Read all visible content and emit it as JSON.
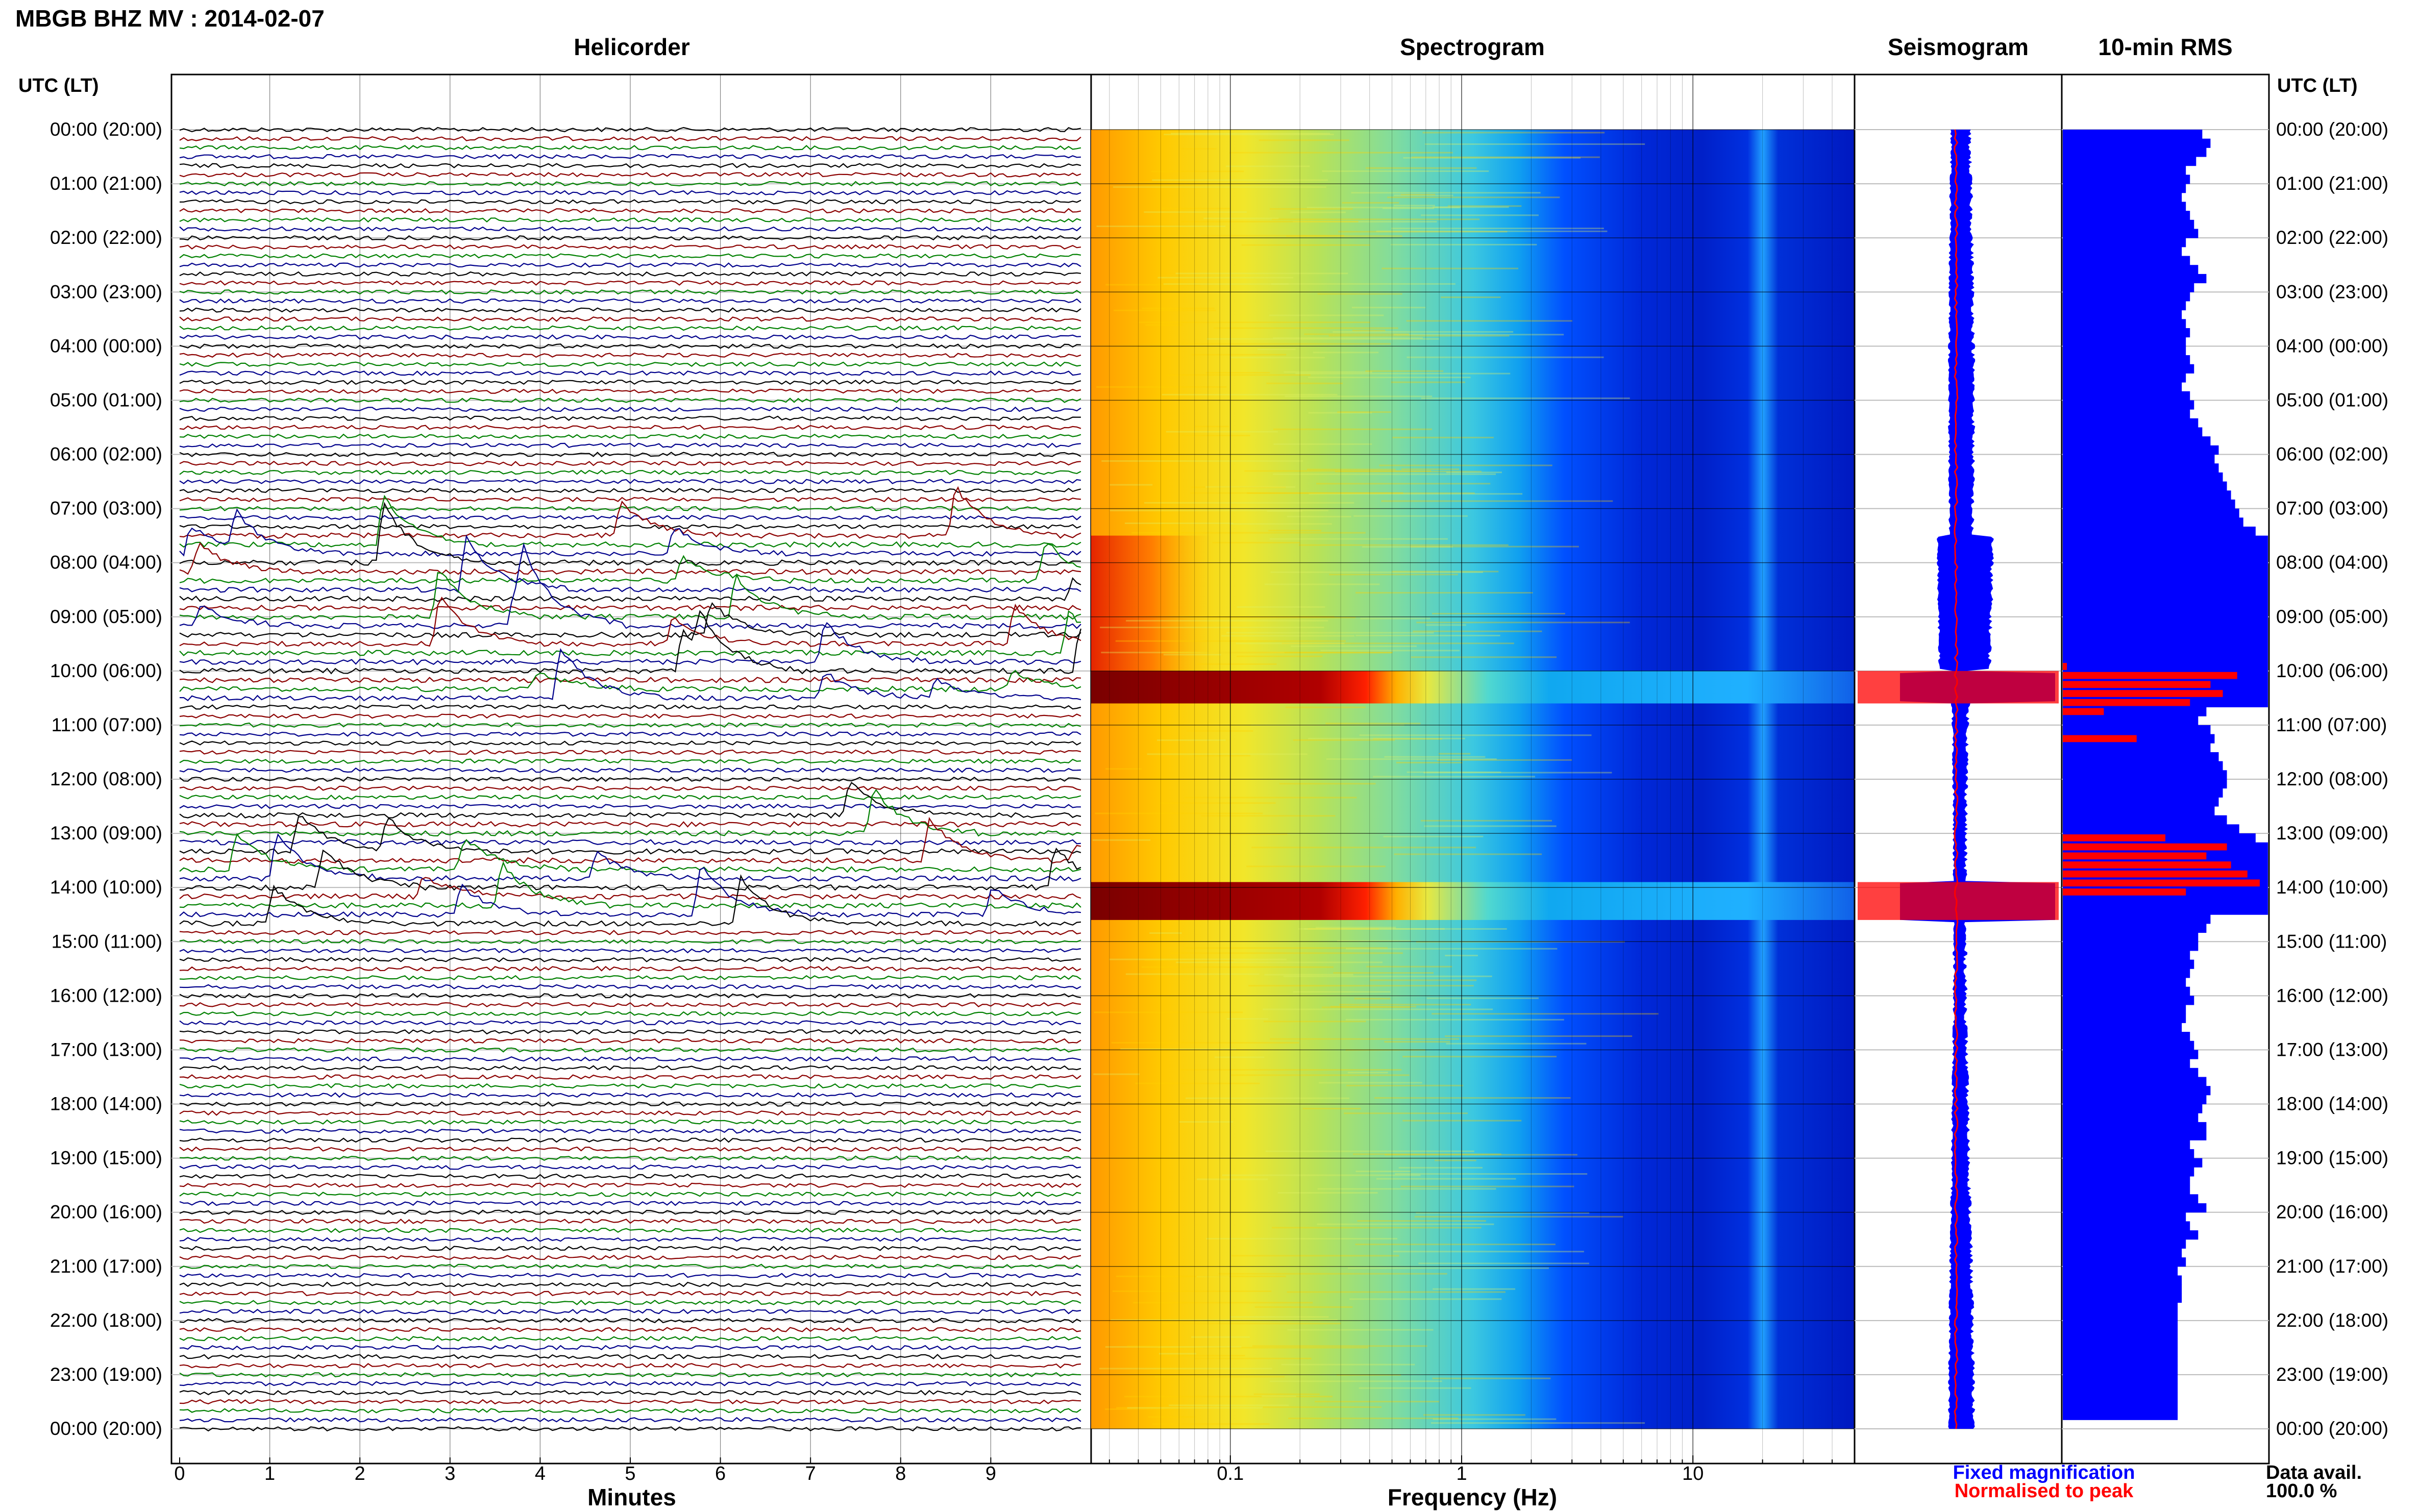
{
  "page": {
    "title": "MBGB BHZ MV : 2014-02-07",
    "utc_label": "UTC (LT)"
  },
  "panels": {
    "helicorder": "Helicorder",
    "spectrogram": "Spectrogram",
    "seismogram": "Seismogram",
    "rms": "10-min RMS"
  },
  "legend": {
    "fixed": "Fixed magnification",
    "fixed_color": "#0000ff",
    "normalised": "Normalised to peak",
    "normalised_color": "#ff0000",
    "data_avail_label": "Data avail.",
    "data_avail_value": "100.0 %"
  },
  "chart_data": [
    {
      "type": "line",
      "title": "Helicorder",
      "xlabel": "Minutes",
      "xlim": [
        0,
        10
      ],
      "x_ticks": [
        "0",
        "1",
        "2",
        "3",
        "4",
        "5",
        "6",
        "7",
        "8",
        "9"
      ],
      "row_labels": [
        "00:00 (20:00)",
        "01:00 (21:00)",
        "02:00 (22:00)",
        "03:00 (23:00)",
        "04:00 (00:00)",
        "05:00 (01:00)",
        "06:00 (02:00)",
        "07:00 (03:00)",
        "08:00 (04:00)",
        "09:00 (05:00)",
        "10:00 (06:00)",
        "11:00 (07:00)",
        "12:00 (08:00)",
        "13:00 (09:00)",
        "14:00 (10:00)",
        "15:00 (11:00)",
        "16:00 (12:00)",
        "17:00 (13:00)",
        "18:00 (14:00)",
        "19:00 (15:00)",
        "20:00 (16:00)",
        "21:00 (17:00)",
        "22:00 (18:00)",
        "23:00 (19:00)",
        "00:00 (20:00)"
      ],
      "trace_colors": [
        "#000000",
        "#8b0000",
        "#008000",
        "#00008b"
      ],
      "traces_per_hour": 6,
      "active_periods_utc_hours": [
        [
          7.5,
          10.6
        ],
        [
          12.6,
          14.8
        ]
      ]
    },
    {
      "type": "heatmap",
      "title": "Spectrogram",
      "xlabel": "Frequency (Hz)",
      "x_scale": "log",
      "xlim": [
        0.025,
        50
      ],
      "x_ticks": [
        "0.1",
        "1",
        "10"
      ],
      "colormap": "jet",
      "high_energy_bands_utc_hours": [
        [
          10.0,
          10.6
        ],
        [
          13.9,
          14.6
        ]
      ]
    },
    {
      "type": "line",
      "title": "Seismogram",
      "series": [
        {
          "name": "Fixed magnification",
          "color": "#0000ff"
        },
        {
          "name": "Normalised to peak",
          "color": "#ff0000"
        }
      ]
    },
    {
      "type": "bar",
      "title": "10-min RMS",
      "bins_per_hour": 6,
      "blue_series_name": "Fixed magnification",
      "red_series_name": "Normalised to peak",
      "blue_values": [
        0.68,
        0.72,
        0.7,
        0.65,
        0.6,
        0.62,
        0.6,
        0.58,
        0.6,
        0.62,
        0.64,
        0.66,
        0.6,
        0.58,
        0.62,
        0.66,
        0.7,
        0.64,
        0.62,
        0.6,
        0.58,
        0.6,
        0.62,
        0.6,
        0.6,
        0.62,
        0.64,
        0.6,
        0.58,
        0.62,
        0.64,
        0.62,
        0.66,
        0.68,
        0.72,
        0.76,
        0.74,
        0.76,
        0.78,
        0.8,
        0.82,
        0.84,
        0.86,
        0.88,
        0.94,
        1.0,
        1.0,
        1.0,
        1.0,
        1.0,
        1.0,
        1.0,
        1.0,
        1.0,
        1.0,
        1.0,
        1.0,
        1.0,
        1.0,
        1.0,
        1.0,
        1.0,
        1.0,
        1.0,
        0.7,
        0.66,
        0.72,
        0.74,
        0.72,
        0.76,
        0.78,
        0.8,
        0.8,
        0.78,
        0.76,
        0.74,
        0.8,
        0.86,
        0.94,
        1.0,
        1.0,
        1.0,
        1.0,
        1.0,
        1.0,
        1.0,
        1.0,
        0.72,
        0.7,
        0.66,
        0.66,
        0.62,
        0.64,
        0.62,
        0.6,
        0.62,
        0.64,
        0.6,
        0.6,
        0.58,
        0.62,
        0.64,
        0.66,
        0.62,
        0.66,
        0.7,
        0.72,
        0.7,
        0.68,
        0.66,
        0.7,
        0.7,
        0.62,
        0.64,
        0.68,
        0.64,
        0.62,
        0.62,
        0.66,
        0.7,
        0.6,
        0.62,
        0.66,
        0.6,
        0.58,
        0.6,
        0.56,
        0.58,
        0.58,
        0.58,
        0.56,
        0.56,
        0.56,
        0.56,
        0.56,
        0.56,
        0.56,
        0.56,
        0.56,
        0.56,
        0.56,
        0.56,
        0.56
      ],
      "red_values": [
        0,
        0,
        0,
        0,
        0,
        0,
        0,
        0,
        0,
        0,
        0,
        0,
        0,
        0,
        0,
        0,
        0,
        0,
        0,
        0,
        0,
        0,
        0,
        0,
        0,
        0,
        0,
        0,
        0,
        0,
        0,
        0,
        0,
        0,
        0,
        0,
        0,
        0,
        0,
        0,
        0,
        0,
        0,
        0,
        0,
        0,
        0,
        0,
        0,
        0,
        0,
        0,
        0,
        0,
        0,
        0,
        0,
        0,
        0,
        0.02,
        0.85,
        0.72,
        0.78,
        0.62,
        0.2,
        0,
        0,
        0.36,
        0,
        0,
        0,
        0,
        0,
        0,
        0,
        0,
        0,
        0,
        0.5,
        0.8,
        0.7,
        0.82,
        0.9,
        0.96,
        0.6,
        0,
        0,
        0,
        0,
        0,
        0,
        0,
        0,
        0,
        0,
        0,
        0,
        0,
        0,
        0,
        0,
        0,
        0,
        0,
        0,
        0,
        0,
        0,
        0,
        0,
        0,
        0,
        0,
        0,
        0,
        0,
        0,
        0,
        0,
        0,
        0,
        0,
        0,
        0,
        0,
        0,
        0,
        0,
        0,
        0,
        0,
        0,
        0,
        0,
        0,
        0,
        0,
        0,
        0,
        0,
        0,
        0
      ]
    }
  ]
}
